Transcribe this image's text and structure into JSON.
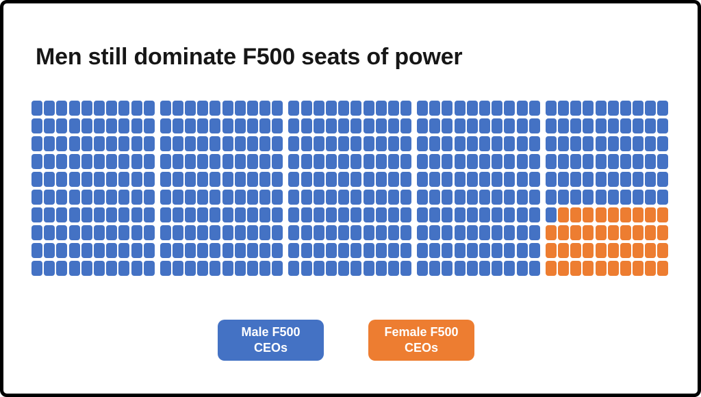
{
  "page": {
    "background": "#FFFFFF",
    "frame_border_color": "#000000",
    "title_color": "#161616"
  },
  "chart_data": {
    "type": "waffle",
    "title": "Men still dominate F500 seats of power",
    "total_units": 500,
    "grid": {
      "rows": 10,
      "cols": 50,
      "col_groups": 5,
      "cols_per_group": 10
    },
    "series": [
      {
        "name": "Male F500 CEOs",
        "value": 461,
        "color": "#4472C4"
      },
      {
        "name": "Female F500 CEOs",
        "value": 39,
        "color": "#ED7D31"
      }
    ],
    "female_region": {
      "row_start": 7,
      "row_end": 10,
      "col_start": 41,
      "col_end": 50,
      "skip_cells": [
        [
          7,
          41
        ]
      ]
    },
    "legend_position": "bottom"
  },
  "legend": {
    "male_label": "Male F500 CEOs",
    "female_label": "Female F500\nCEOs",
    "male_color": "#4472C4",
    "female_color": "#ED7D31",
    "text_color": "#FFFFFF"
  }
}
